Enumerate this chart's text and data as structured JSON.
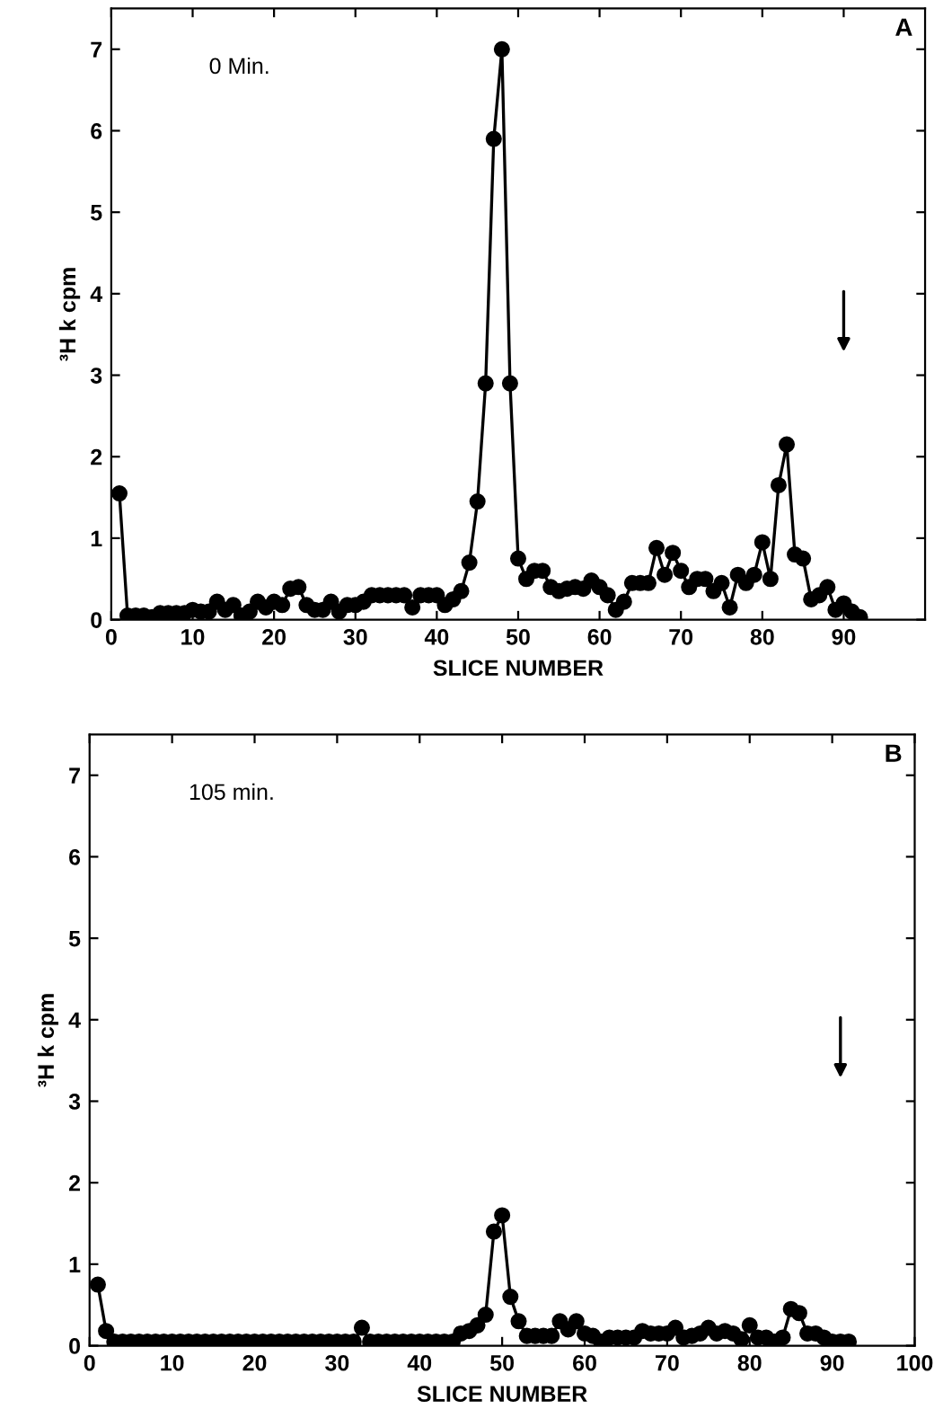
{
  "chart_data": [
    {
      "type": "line",
      "xlabel": "SLICE NUMBER",
      "ylabel": "³H k cpm",
      "annotations": [
        "0 Min.",
        "A"
      ],
      "x": [
        1,
        2,
        3,
        4,
        5,
        6,
        7,
        8,
        9,
        10,
        11,
        12,
        13,
        14,
        15,
        16,
        17,
        18,
        19,
        20,
        21,
        22,
        23,
        24,
        25,
        26,
        27,
        28,
        29,
        30,
        31,
        32,
        33,
        34,
        35,
        36,
        37,
        38,
        39,
        40,
        41,
        42,
        43,
        44,
        45,
        46,
        47,
        48,
        49,
        50,
        51,
        52,
        53,
        54,
        55,
        56,
        57,
        58,
        59,
        60,
        61,
        62,
        63,
        64,
        65,
        66,
        67,
        68,
        69,
        70,
        71,
        72,
        73,
        74,
        75,
        76,
        77,
        78,
        79,
        80,
        81,
        82,
        83,
        84,
        85,
        86,
        87,
        88,
        89,
        90,
        91,
        92
      ],
      "series": [
        {
          "color": "#000000",
          "values": [
            1.55,
            0.05,
            0.05,
            0.05,
            0.03,
            0.08,
            0.08,
            0.08,
            0.08,
            0.12,
            0.1,
            0.1,
            0.22,
            0.12,
            0.18,
            0.05,
            0.1,
            0.22,
            0.15,
            0.22,
            0.18,
            0.38,
            0.4,
            0.18,
            0.12,
            0.12,
            0.22,
            0.1,
            0.18,
            0.18,
            0.22,
            0.3,
            0.3,
            0.3,
            0.3,
            0.3,
            0.15,
            0.3,
            0.3,
            0.3,
            0.18,
            0.25,
            0.35,
            0.7,
            1.45,
            2.9,
            5.9,
            7.0,
            2.9,
            0.75,
            0.5,
            0.6,
            0.6,
            0.4,
            0.35,
            0.38,
            0.4,
            0.38,
            0.48,
            0.4,
            0.3,
            0.12,
            0.22,
            0.45,
            0.45,
            0.45,
            0.88,
            0.55,
            0.82,
            0.6,
            0.4,
            0.5,
            0.5,
            0.35,
            0.45,
            0.15,
            0.55,
            0.45,
            0.55,
            0.95,
            0.5,
            1.65,
            2.15,
            0.8,
            0.75,
            0.25,
            0.3,
            0.4,
            0.12,
            0.2,
            0.1,
            0.03
          ]
        }
      ],
      "xlim": [
        0,
        100
      ],
      "xticks": [
        0,
        10,
        20,
        30,
        40,
        50,
        60,
        70,
        80,
        90
      ],
      "ylim": [
        0,
        7.5
      ],
      "yticks": [
        0,
        1,
        2,
        3,
        4,
        5,
        6,
        7
      ],
      "marker": "circle",
      "line_style": "solid",
      "grid": false,
      "legend": false
    },
    {
      "type": "line",
      "xlabel": "SLICE NUMBER",
      "ylabel": "³H k cpm",
      "annotations": [
        "105 min.",
        "B"
      ],
      "x": [
        1,
        2,
        3,
        4,
        5,
        6,
        7,
        8,
        9,
        10,
        11,
        12,
        13,
        14,
        15,
        16,
        17,
        18,
        19,
        20,
        21,
        22,
        23,
        24,
        25,
        26,
        27,
        28,
        29,
        30,
        31,
        32,
        33,
        34,
        35,
        36,
        37,
        38,
        39,
        40,
        41,
        42,
        43,
        44,
        45,
        46,
        47,
        48,
        49,
        50,
        51,
        52,
        53,
        54,
        55,
        56,
        57,
        58,
        59,
        60,
        61,
        62,
        63,
        64,
        65,
        66,
        67,
        68,
        69,
        70,
        71,
        72,
        73,
        74,
        75,
        76,
        77,
        78,
        79,
        80,
        81,
        82,
        83,
        84,
        85,
        86,
        87,
        88,
        89,
        90,
        91,
        92
      ],
      "series": [
        {
          "color": "#000000",
          "values": [
            0.75,
            0.18,
            0.05,
            0.05,
            0.05,
            0.05,
            0.05,
            0.05,
            0.05,
            0.05,
            0.05,
            0.05,
            0.05,
            0.05,
            0.05,
            0.05,
            0.05,
            0.05,
            0.05,
            0.05,
            0.05,
            0.05,
            0.05,
            0.05,
            0.05,
            0.05,
            0.05,
            0.05,
            0.05,
            0.05,
            0.05,
            0.05,
            0.22,
            0.05,
            0.05,
            0.05,
            0.05,
            0.05,
            0.05,
            0.05,
            0.05,
            0.05,
            0.05,
            0.05,
            0.15,
            0.18,
            0.25,
            0.38,
            1.4,
            1.6,
            0.6,
            0.3,
            0.12,
            0.12,
            0.12,
            0.12,
            0.3,
            0.2,
            0.3,
            0.15,
            0.12,
            0.05,
            0.1,
            0.1,
            0.1,
            0.1,
            0.18,
            0.15,
            0.15,
            0.15,
            0.22,
            0.1,
            0.12,
            0.15,
            0.22,
            0.15,
            0.18,
            0.15,
            0.08,
            0.25,
            0.1,
            0.1,
            0.05,
            0.1,
            0.45,
            0.4,
            0.15,
            0.15,
            0.1,
            0.05,
            0.05,
            0.05
          ]
        }
      ],
      "xlim": [
        0,
        100
      ],
      "xticks": [
        0,
        10,
        20,
        30,
        40,
        50,
        60,
        70,
        80,
        90,
        100
      ],
      "ylim": [
        0,
        7.5
      ],
      "yticks": [
        0,
        1,
        2,
        3,
        4,
        5,
        6,
        7
      ],
      "marker": "circle",
      "line_style": "solid",
      "grid": false,
      "legend": false
    }
  ]
}
